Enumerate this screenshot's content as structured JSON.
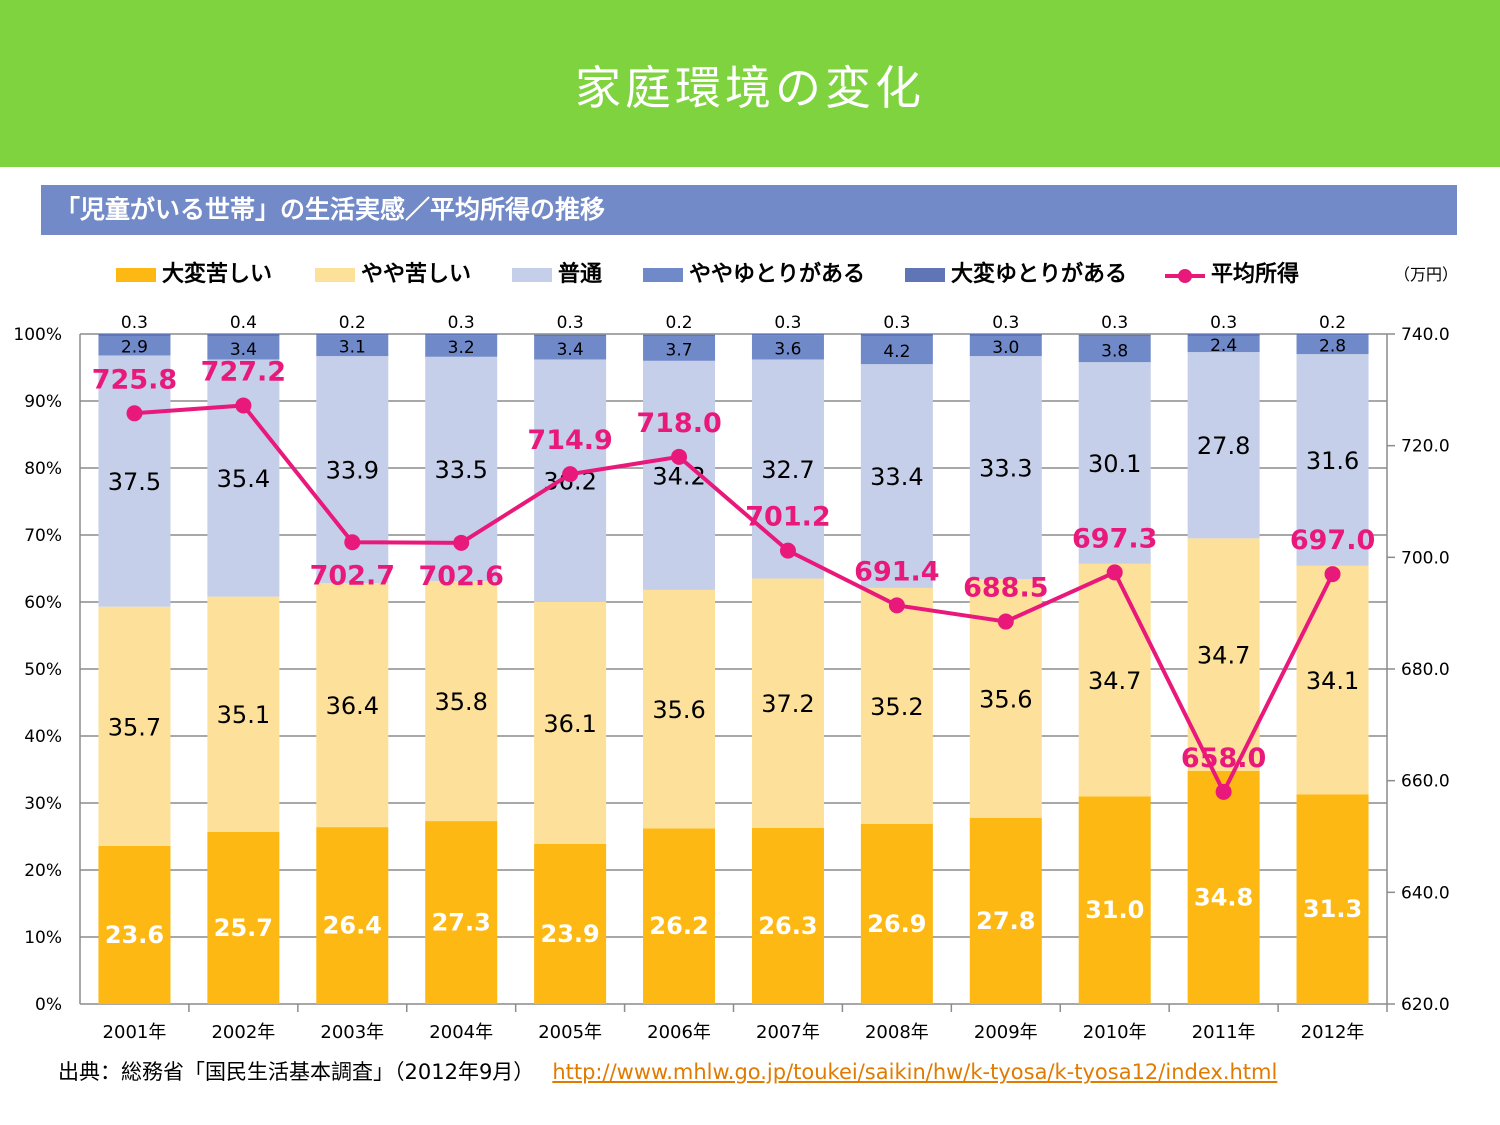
{
  "header": {
    "title": "家庭環境の変化"
  },
  "subtitle": "「児童がいる世帯」の生活実感／平均所得の推移",
  "source": {
    "label": "出典：総務省「国民生活基本調査」（2012年9月）",
    "link": "http://www.mhlw.go.jp/toukei/saikin/hw/k-tyosa/k-tyosa12/index.html"
  },
  "chart_data": {
    "type": "bar",
    "stacked": true,
    "categories": [
      "2001年",
      "2002年",
      "2003年",
      "2004年",
      "2005年",
      "2006年",
      "2007年",
      "2008年",
      "2009年",
      "2010年",
      "2011年",
      "2012年"
    ],
    "series": [
      {
        "name": "大変苦しい",
        "color": "#fdb813",
        "values": [
          23.6,
          25.7,
          26.4,
          27.3,
          23.9,
          26.2,
          26.3,
          26.9,
          27.8,
          31.0,
          34.8,
          31.3
        ]
      },
      {
        "name": "やや苦しい",
        "color": "#fde19a",
        "values": [
          35.7,
          35.1,
          36.4,
          35.8,
          36.1,
          35.6,
          37.2,
          35.2,
          35.6,
          34.7,
          34.7,
          34.1
        ]
      },
      {
        "name": "普通",
        "color": "#c5cfe9",
        "values": [
          37.5,
          35.4,
          33.9,
          33.5,
          36.2,
          34.2,
          32.7,
          33.4,
          33.3,
          30.1,
          27.8,
          31.6
        ]
      },
      {
        "name": "ややゆとりがある",
        "color": "#7089c8",
        "values": [
          2.9,
          3.4,
          3.1,
          3.2,
          3.4,
          3.7,
          3.6,
          4.2,
          3.0,
          3.8,
          2.4,
          2.8
        ]
      },
      {
        "name": "大変ゆとりがある",
        "color": "#5f75b5",
        "values": [
          0.3,
          0.4,
          0.2,
          0.3,
          0.3,
          0.2,
          0.3,
          0.3,
          0.3,
          0.3,
          0.3,
          0.2
        ]
      }
    ],
    "line_series": {
      "name": "平均所得",
      "color": "#e8197b",
      "axis": "right",
      "values": [
        725.8,
        727.2,
        702.7,
        702.6,
        714.9,
        718.0,
        701.2,
        691.4,
        688.5,
        697.3,
        658.0,
        697.0
      ]
    },
    "y_left": {
      "range": [
        0,
        100
      ],
      "ticks": [
        "0%",
        "10%",
        "20%",
        "30%",
        "40%",
        "50%",
        "60%",
        "70%",
        "80%",
        "90%",
        "100%"
      ]
    },
    "y_right": {
      "range": [
        620,
        740
      ],
      "unit": "（万円）",
      "ticks": [
        "620.0",
        "640.0",
        "660.0",
        "680.0",
        "700.0",
        "720.0",
        "740.0"
      ]
    },
    "grid": true,
    "legend": "top"
  }
}
